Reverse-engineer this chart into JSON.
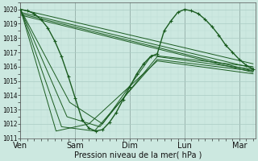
{
  "background_color": "#cce8e0",
  "grid_major_color": "#aaccC4",
  "grid_minor_color": "#bbddd5",
  "line_color": "#1a5c20",
  "xlabel": "Pression niveau de la mer( hPa )",
  "ylim": [
    1011,
    1020.5
  ],
  "yticks": [
    1011,
    1012,
    1013,
    1014,
    1015,
    1016,
    1017,
    1018,
    1019,
    1020
  ],
  "xlim": [
    0,
    4.3
  ],
  "day_ticks": [
    0,
    1,
    2,
    3,
    4
  ],
  "day_labels": [
    "Ven",
    "Sam",
    "Dim",
    "Lun",
    "Mar"
  ],
  "main_series_x": [
    0,
    0.125,
    0.25,
    0.375,
    0.5,
    0.625,
    0.75,
    0.875,
    1.0,
    1.125,
    1.25,
    1.375,
    1.5,
    1.625,
    1.75,
    1.875,
    2.0,
    2.125,
    2.25,
    2.375,
    2.5,
    2.625,
    2.75,
    2.875,
    3.0,
    3.125,
    3.25,
    3.375,
    3.5,
    3.625,
    3.75,
    3.875,
    4.0,
    4.125,
    4.25
  ],
  "main_series_y": [
    1020.0,
    1019.9,
    1019.7,
    1019.3,
    1018.7,
    1017.8,
    1016.7,
    1015.3,
    1013.8,
    1012.3,
    1011.7,
    1011.5,
    1011.6,
    1012.1,
    1012.8,
    1013.7,
    1014.6,
    1015.5,
    1016.2,
    1016.7,
    1016.9,
    1018.5,
    1019.2,
    1019.8,
    1020.0,
    1019.9,
    1019.7,
    1019.3,
    1018.8,
    1018.2,
    1017.5,
    1017.0,
    1016.5,
    1016.1,
    1015.8
  ],
  "ensemble_lines": [
    {
      "x": [
        0,
        4.25
      ],
      "y": [
        1020.0,
        1016.2
      ]
    },
    {
      "x": [
        0,
        4.25
      ],
      "y": [
        1019.8,
        1015.9
      ]
    },
    {
      "x": [
        0,
        4.25
      ],
      "y": [
        1019.7,
        1015.7
      ]
    },
    {
      "x": [
        0,
        4.25
      ],
      "y": [
        1019.6,
        1015.6
      ]
    },
    {
      "x": [
        0,
        0.9,
        1.5,
        2.4,
        4.25
      ],
      "y": [
        1020.0,
        1013.5,
        1012.0,
        1016.8,
        1016.0
      ]
    },
    {
      "x": [
        0,
        0.85,
        1.45,
        2.5,
        4.25
      ],
      "y": [
        1020.0,
        1012.5,
        1011.8,
        1016.7,
        1015.8
      ]
    },
    {
      "x": [
        0,
        0.75,
        1.35,
        2.5,
        4.25
      ],
      "y": [
        1020.0,
        1011.8,
        1011.5,
        1016.5,
        1015.7
      ]
    },
    {
      "x": [
        0,
        0.65,
        1.25,
        2.5,
        4.25
      ],
      "y": [
        1020.0,
        1011.5,
        1012.0,
        1016.4,
        1015.5
      ]
    }
  ]
}
